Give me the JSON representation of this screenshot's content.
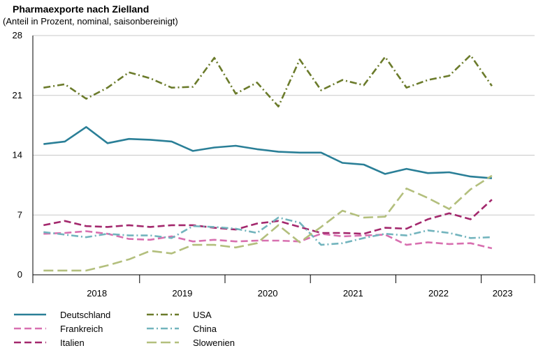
{
  "chart_data": {
    "type": "line",
    "title": "Pharmaexporte nach Zielland",
    "subtitle": "(Anteil in Prozent, nominal, saisonbereinigt)",
    "xlabel": "",
    "ylabel": "",
    "ylim": [
      0,
      28
    ],
    "yticks": [
      0,
      7,
      14,
      21,
      28
    ],
    "ytick_labels": [
      "0",
      "7",
      "14",
      "21",
      "28"
    ],
    "x_start": 2017.625,
    "x_step": 0.25,
    "xlim": [
      2017.5,
      2023.375
    ],
    "year_labels": [
      "2018",
      "2019",
      "2020",
      "2021",
      "2022",
      "2023"
    ],
    "year_label_positions": [
      2018.25,
      2019.25,
      2020.25,
      2021.25,
      2022.25,
      2023.0
    ],
    "xtick_positions": [
      2017.5,
      2018.75,
      2019.75,
      2020.75,
      2021.75,
      2022.75,
      2023.375
    ],
    "grid": "horizontal",
    "legend_position": "bottom",
    "series": [
      {
        "name": "Deutschland",
        "color": "#2a7f97",
        "dash": "solid",
        "values": [
          15.3,
          15.6,
          17.3,
          15.4,
          15.9,
          15.8,
          15.6,
          14.5,
          14.9,
          15.1,
          14.7,
          14.4,
          14.3,
          14.3,
          13.1,
          12.9,
          11.8,
          12.4,
          11.9,
          12.0,
          11.5,
          11.3
        ]
      },
      {
        "name": "Frankreich",
        "color": "#d870b0",
        "dash": "dash",
        "values": [
          4.8,
          4.9,
          5.1,
          4.8,
          4.2,
          4.1,
          4.5,
          3.9,
          4.1,
          3.9,
          4.0,
          4.0,
          3.9,
          4.8,
          4.5,
          4.6,
          4.7,
          3.5,
          3.8,
          3.6,
          3.7,
          3.1
        ]
      },
      {
        "name": "Italien",
        "color": "#a3286d",
        "dash": "dash",
        "values": [
          5.8,
          6.3,
          5.7,
          5.6,
          5.8,
          5.6,
          5.8,
          5.8,
          5.5,
          5.3,
          6.0,
          6.3,
          5.6,
          4.9,
          4.9,
          4.8,
          5.5,
          5.4,
          6.5,
          7.2,
          6.5,
          8.8
        ]
      },
      {
        "name": "USA",
        "color": "#6b7b2b",
        "dash": "dashdot",
        "values": [
          21.9,
          22.3,
          20.6,
          21.9,
          23.7,
          23.0,
          21.9,
          22.0,
          25.4,
          21.2,
          22.5,
          19.7,
          25.2,
          21.6,
          22.8,
          22.2,
          25.5,
          21.9,
          22.8,
          23.3,
          25.7,
          22.1
        ]
      },
      {
        "name": "China",
        "color": "#72b4bd",
        "dash": "dashdot",
        "values": [
          5.0,
          4.7,
          4.4,
          4.8,
          4.6,
          4.6,
          4.3,
          5.7,
          5.6,
          5.4,
          4.9,
          6.7,
          6.1,
          3.5,
          3.7,
          4.3,
          4.8,
          4.6,
          5.2,
          4.9,
          4.3,
          4.4
        ]
      },
      {
        "name": "Slowenien",
        "color": "#b3bf7d",
        "dash": "longdash",
        "values": [
          0.5,
          0.5,
          0.5,
          1.1,
          1.8,
          2.8,
          2.5,
          3.5,
          3.5,
          3.2,
          3.7,
          5.8,
          3.8,
          5.6,
          7.5,
          6.7,
          6.8,
          10.1,
          9.0,
          7.7,
          10.0,
          11.6
        ]
      }
    ]
  }
}
